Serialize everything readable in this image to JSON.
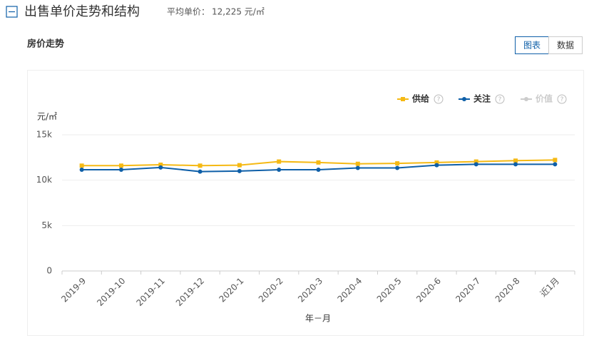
{
  "header": {
    "title": "出售单价走势和结构",
    "avg_label": "平均单价：",
    "avg_value": "12,225 元/㎡"
  },
  "section_title": "房价走势",
  "tabs": [
    "图表",
    "数据"
  ],
  "chart_data": {
    "type": "line",
    "y_label": "元/㎡",
    "x_label": "年－月",
    "categories": [
      "2019-9",
      "2019-10",
      "2019-11",
      "2019-12",
      "2020-1",
      "2020-2",
      "2020-3",
      "2020-4",
      "2020-5",
      "2020-6",
      "2020-7",
      "2020-8",
      "近1月"
    ],
    "series": [
      {
        "name": "供给",
        "color": "#f5b914",
        "values": [
          11600,
          11600,
          11700,
          11600,
          11650,
          12050,
          11950,
          11800,
          11850,
          11950,
          12050,
          12150,
          12225
        ]
      },
      {
        "name": "关注",
        "color": "#0e5fa8",
        "values": [
          11150,
          11150,
          11400,
          10950,
          11000,
          11150,
          11150,
          11350,
          11350,
          11650,
          11750,
          11750,
          11750
        ]
      },
      {
        "name": "价值",
        "color": "#cccccc",
        "hidden": true,
        "values": [
          null,
          null,
          null,
          null,
          null,
          null,
          null,
          null,
          null,
          null,
          null,
          null,
          null
        ]
      }
    ],
    "ylim": [
      0,
      15000
    ],
    "yticks": [
      0,
      {
        "value": 5000,
        "label": "5k"
      },
      {
        "value": 10000,
        "label": "10k"
      },
      {
        "value": 15000,
        "label": "15k"
      }
    ],
    "grid": true
  }
}
